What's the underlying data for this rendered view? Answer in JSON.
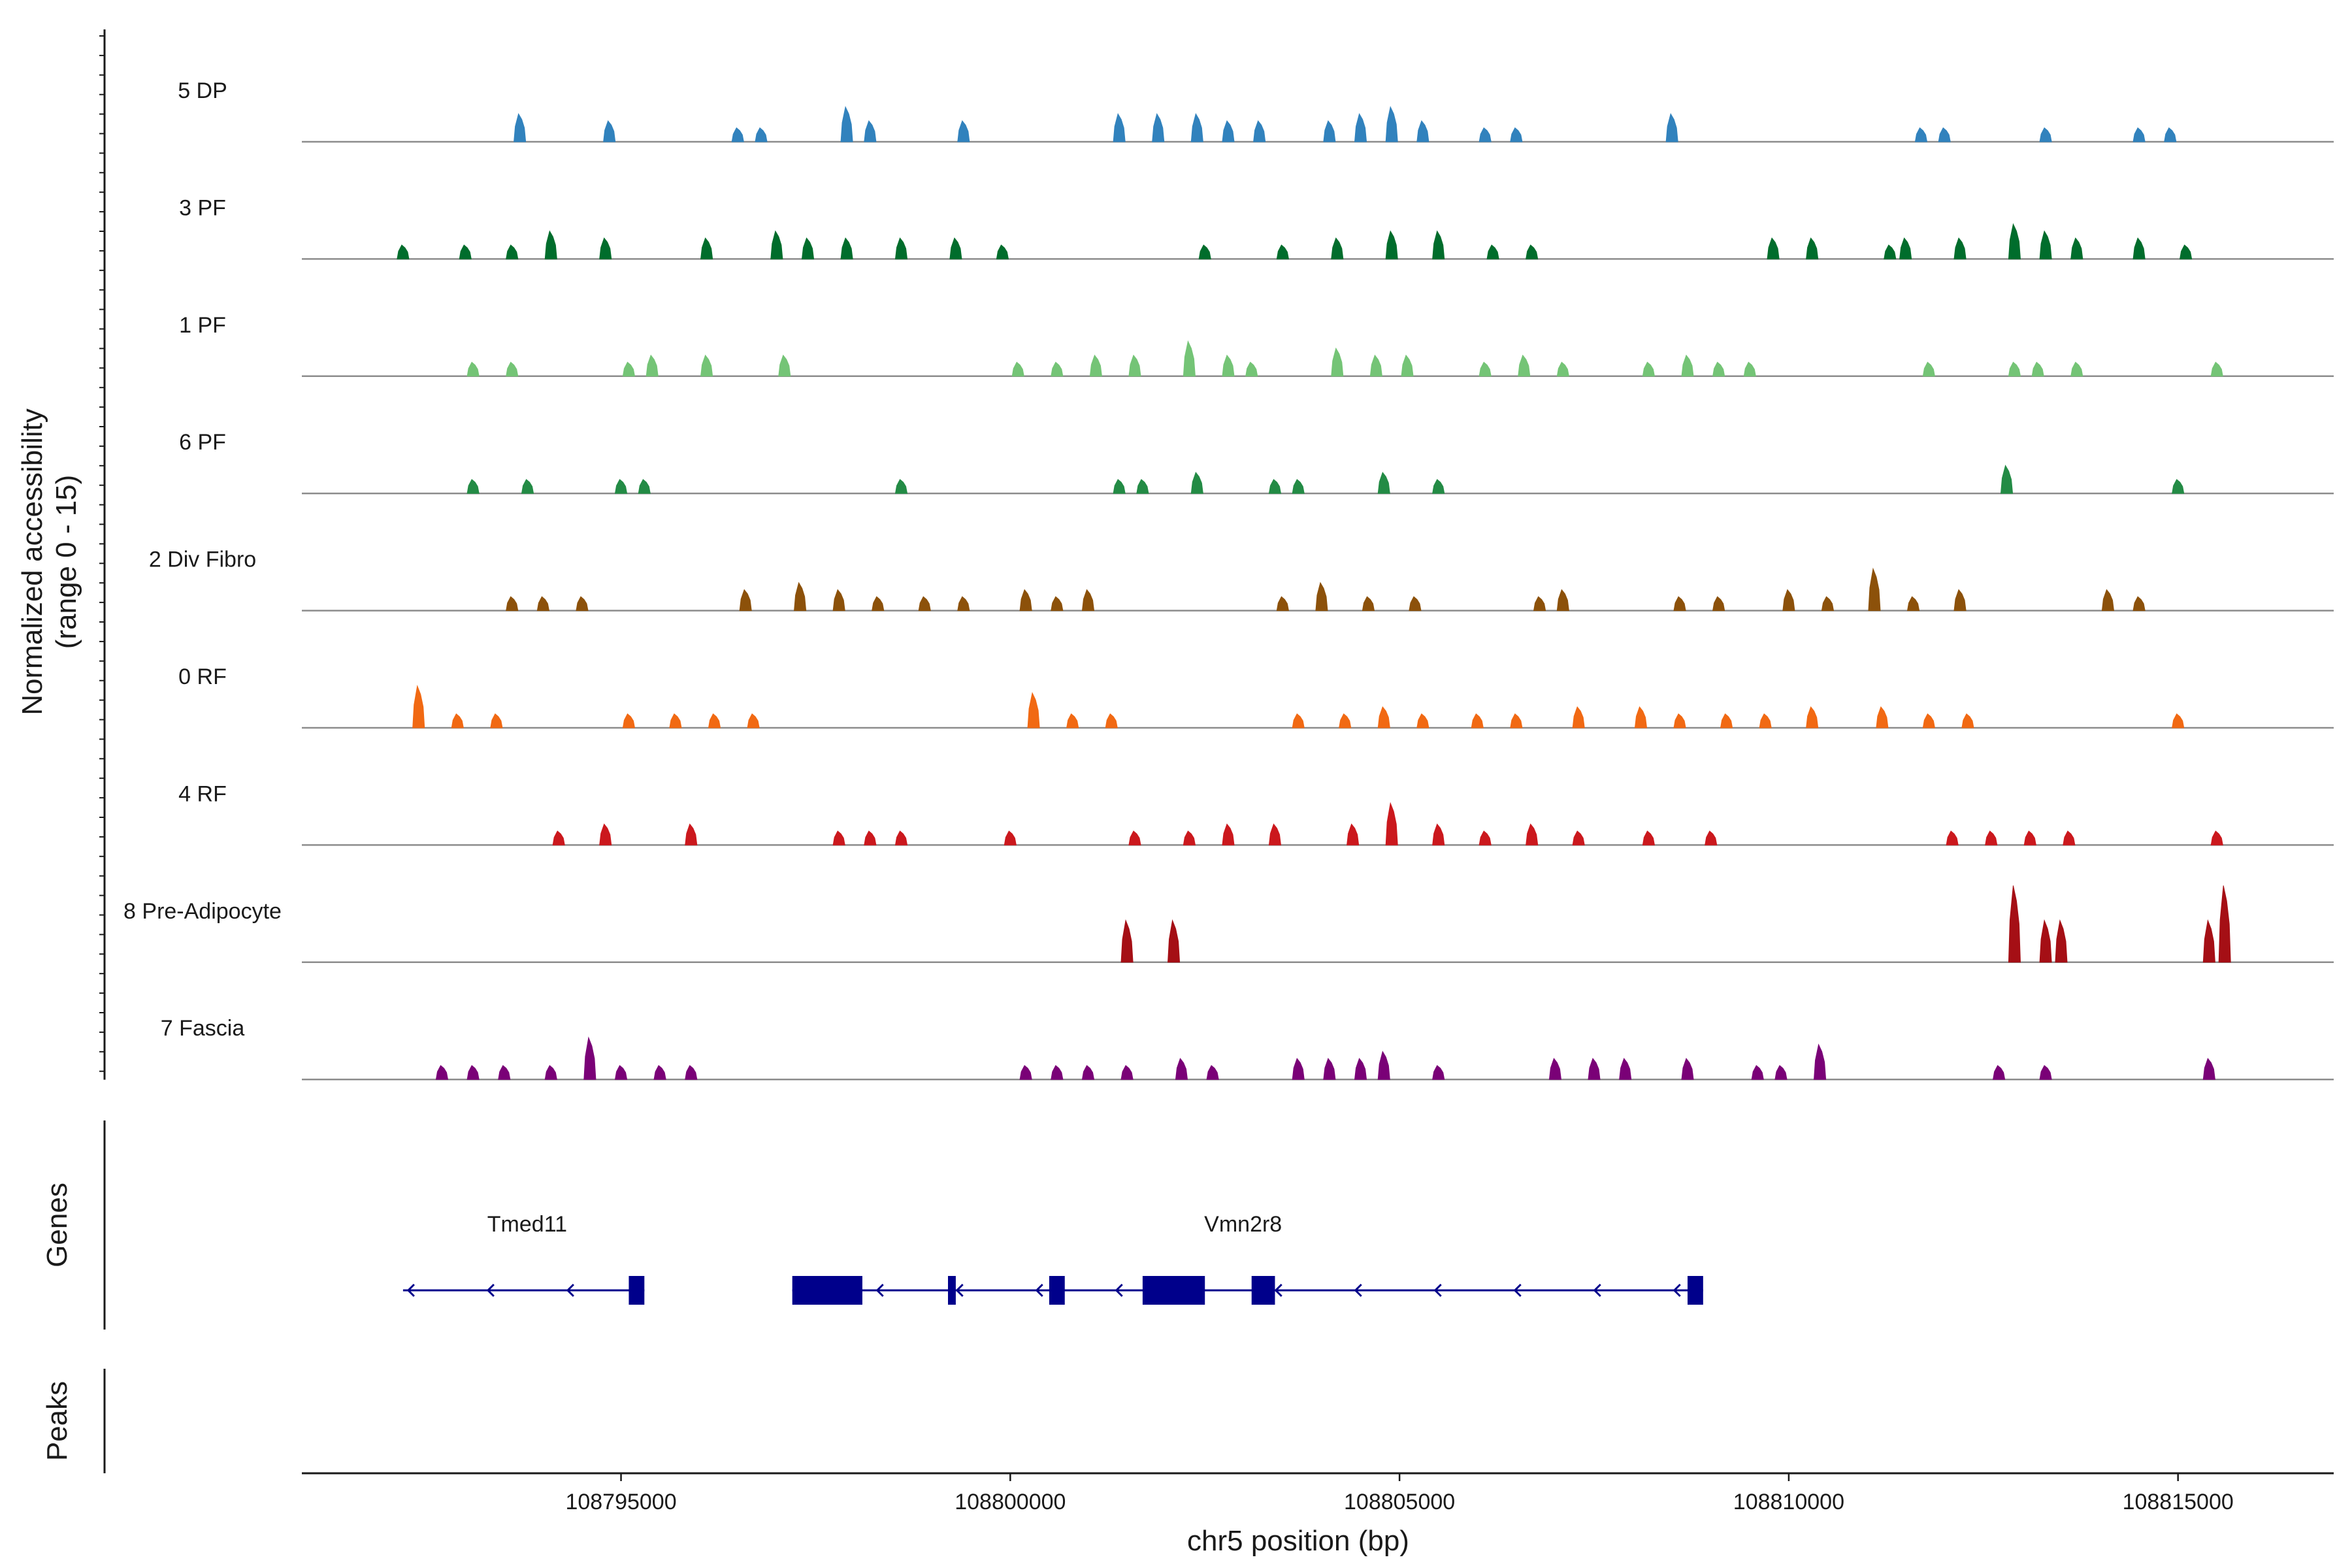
{
  "chart_data": {
    "type": "coverage-track",
    "ylabel_line1": "Normalized accessibility",
    "ylabel_line2": "(range 0 - 15)",
    "ylim": [
      0,
      15
    ],
    "xlabel": "chr5 position (bp)",
    "xlim": [
      108790900,
      108817000
    ],
    "xticks": [
      108795000,
      108800000,
      108805000,
      108810000,
      108815000
    ],
    "xtick_labels": [
      "108795000",
      "108800000",
      "108805000",
      "108810000",
      "108815000"
    ],
    "tracks": [
      {
        "name": "5 DP",
        "color": "#3182BD",
        "peaks": [
          [
            108793700,
            4
          ],
          [
            108794850,
            3
          ],
          [
            108796500,
            2
          ],
          [
            108796800,
            2
          ],
          [
            108797900,
            5
          ],
          [
            108798200,
            3
          ],
          [
            108799400,
            3
          ],
          [
            108801400,
            4
          ],
          [
            108801900,
            4
          ],
          [
            108802400,
            4
          ],
          [
            108802800,
            3
          ],
          [
            108803200,
            3
          ],
          [
            108804100,
            3
          ],
          [
            108804500,
            4
          ],
          [
            108804900,
            5
          ],
          [
            108805300,
            3
          ],
          [
            108806100,
            2
          ],
          [
            108806500,
            2
          ],
          [
            108808500,
            4
          ],
          [
            108811700,
            2
          ],
          [
            108812000,
            2
          ],
          [
            108813300,
            2
          ],
          [
            108814500,
            2
          ],
          [
            108814900,
            2
          ]
        ]
      },
      {
        "name": "3 PF",
        "color": "#006D2C",
        "peaks": [
          [
            108792200,
            2
          ],
          [
            108793000,
            2
          ],
          [
            108793600,
            2
          ],
          [
            108794100,
            4
          ],
          [
            108794800,
            3
          ],
          [
            108796100,
            3
          ],
          [
            108797000,
            4
          ],
          [
            108797400,
            3
          ],
          [
            108797900,
            3
          ],
          [
            108798600,
            3
          ],
          [
            108799300,
            3
          ],
          [
            108799900,
            2
          ],
          [
            108802500,
            2
          ],
          [
            108803500,
            2
          ],
          [
            108804200,
            3
          ],
          [
            108804900,
            4
          ],
          [
            108805500,
            4
          ],
          [
            108806200,
            2
          ],
          [
            108806700,
            2
          ],
          [
            108809800,
            3
          ],
          [
            108810300,
            3
          ],
          [
            108811300,
            2
          ],
          [
            108811500,
            3
          ],
          [
            108812200,
            3
          ],
          [
            108812900,
            5
          ],
          [
            108813300,
            4
          ],
          [
            108813700,
            3
          ],
          [
            108814500,
            3
          ],
          [
            108815100,
            2
          ]
        ]
      },
      {
        "name": "1 PF",
        "color": "#74C476",
        "peaks": [
          [
            108793100,
            2
          ],
          [
            108793600,
            2
          ],
          [
            108795100,
            2
          ],
          [
            108795400,
            3
          ],
          [
            108796100,
            3
          ],
          [
            108797100,
            3
          ],
          [
            108800100,
            2
          ],
          [
            108800600,
            2
          ],
          [
            108801100,
            3
          ],
          [
            108801600,
            3
          ],
          [
            108802300,
            5
          ],
          [
            108802800,
            3
          ],
          [
            108803100,
            2
          ],
          [
            108804200,
            4
          ],
          [
            108804700,
            3
          ],
          [
            108805100,
            3
          ],
          [
            108806100,
            2
          ],
          [
            108806600,
            3
          ],
          [
            108807100,
            2
          ],
          [
            108808200,
            2
          ],
          [
            108808700,
            3
          ],
          [
            108809100,
            2
          ],
          [
            108809500,
            2
          ],
          [
            108811800,
            2
          ],
          [
            108812900,
            2
          ],
          [
            108813200,
            2
          ],
          [
            108813700,
            2
          ],
          [
            108815500,
            2
          ]
        ]
      },
      {
        "name": "6 PF",
        "color": "#238B45",
        "peaks": [
          [
            108793100,
            2
          ],
          [
            108793800,
            2
          ],
          [
            108795000,
            2
          ],
          [
            108795300,
            2
          ],
          [
            108798600,
            2
          ],
          [
            108801400,
            2
          ],
          [
            108801700,
            2
          ],
          [
            108802400,
            3
          ],
          [
            108803400,
            2
          ],
          [
            108803700,
            2
          ],
          [
            108804800,
            3
          ],
          [
            108805500,
            2
          ],
          [
            108812800,
            4
          ],
          [
            108815000,
            2
          ]
        ]
      },
      {
        "name": "2 Div Fibro",
        "color": "#8C510A",
        "peaks": [
          [
            108793600,
            2
          ],
          [
            108794000,
            2
          ],
          [
            108794500,
            2
          ],
          [
            108796600,
            3
          ],
          [
            108797300,
            4
          ],
          [
            108797800,
            3
          ],
          [
            108798300,
            2
          ],
          [
            108798900,
            2
          ],
          [
            108799400,
            2
          ],
          [
            108800200,
            3
          ],
          [
            108800600,
            2
          ],
          [
            108801000,
            3
          ],
          [
            108803500,
            2
          ],
          [
            108804000,
            4
          ],
          [
            108804600,
            2
          ],
          [
            108805200,
            2
          ],
          [
            108806800,
            2
          ],
          [
            108807100,
            3
          ],
          [
            108808600,
            2
          ],
          [
            108809100,
            2
          ],
          [
            108810000,
            3
          ],
          [
            108810500,
            2
          ],
          [
            108811100,
            6
          ],
          [
            108811600,
            2
          ],
          [
            108812200,
            3
          ],
          [
            108814100,
            3
          ],
          [
            108814500,
            2
          ]
        ]
      },
      {
        "name": "0 RF",
        "color": "#F16913",
        "peaks": [
          [
            108792400,
            6
          ],
          [
            108792900,
            2
          ],
          [
            108793400,
            2
          ],
          [
            108795100,
            2
          ],
          [
            108795700,
            2
          ],
          [
            108796200,
            2
          ],
          [
            108796700,
            2
          ],
          [
            108800300,
            5
          ],
          [
            108800800,
            2
          ],
          [
            108801300,
            2
          ],
          [
            108803700,
            2
          ],
          [
            108804300,
            2
          ],
          [
            108804800,
            3
          ],
          [
            108805300,
            2
          ],
          [
            108806000,
            2
          ],
          [
            108806500,
            2
          ],
          [
            108807300,
            3
          ],
          [
            108808100,
            3
          ],
          [
            108808600,
            2
          ],
          [
            108809200,
            2
          ],
          [
            108809700,
            2
          ],
          [
            108810300,
            3
          ],
          [
            108811200,
            3
          ],
          [
            108811800,
            2
          ],
          [
            108812300,
            2
          ],
          [
            108815000,
            2
          ]
        ]
      },
      {
        "name": "4 RF",
        "color": "#CB181D",
        "peaks": [
          [
            108794200,
            2
          ],
          [
            108794800,
            3
          ],
          [
            108795900,
            3
          ],
          [
            108797800,
            2
          ],
          [
            108798200,
            2
          ],
          [
            108798600,
            2
          ],
          [
            108800000,
            2
          ],
          [
            108801600,
            2
          ],
          [
            108802300,
            2
          ],
          [
            108802800,
            3
          ],
          [
            108803400,
            3
          ],
          [
            108804400,
            3
          ],
          [
            108804900,
            6
          ],
          [
            108805500,
            3
          ],
          [
            108806100,
            2
          ],
          [
            108806700,
            3
          ],
          [
            108807300,
            2
          ],
          [
            108808200,
            2
          ],
          [
            108809000,
            2
          ],
          [
            108812100,
            2
          ],
          [
            108812600,
            2
          ],
          [
            108813100,
            2
          ],
          [
            108813600,
            2
          ],
          [
            108815500,
            2
          ]
        ]
      },
      {
        "name": "8 Pre-Adipocyte",
        "color": "#A50F15",
        "peaks": [
          [
            108801500,
            6
          ],
          [
            108802100,
            6
          ],
          [
            108812900,
            11
          ],
          [
            108813300,
            6
          ],
          [
            108813500,
            6
          ],
          [
            108815400,
            6
          ],
          [
            108815600,
            11
          ]
        ]
      },
      {
        "name": "7 Fascia",
        "color": "#7A0177",
        "peaks": [
          [
            108792700,
            2
          ],
          [
            108793100,
            2
          ],
          [
            108793500,
            2
          ],
          [
            108794100,
            2
          ],
          [
            108794600,
            6
          ],
          [
            108795000,
            2
          ],
          [
            108795500,
            2
          ],
          [
            108795900,
            2
          ],
          [
            108800200,
            2
          ],
          [
            108800600,
            2
          ],
          [
            108801000,
            2
          ],
          [
            108801500,
            2
          ],
          [
            108802200,
            3
          ],
          [
            108802600,
            2
          ],
          [
            108803700,
            3
          ],
          [
            108804100,
            3
          ],
          [
            108804500,
            3
          ],
          [
            108804800,
            4
          ],
          [
            108805500,
            2
          ],
          [
            108807000,
            3
          ],
          [
            108807500,
            3
          ],
          [
            108807900,
            3
          ],
          [
            108808700,
            3
          ],
          [
            108809600,
            2
          ],
          [
            108809900,
            2
          ],
          [
            108810400,
            5
          ],
          [
            108812700,
            2
          ],
          [
            108813300,
            2
          ],
          [
            108815400,
            3
          ]
        ]
      }
    ],
    "genes": [
      {
        "name": "Tmed11",
        "strand": "-",
        "start": 108792200,
        "end": 108795300,
        "exons": [
          [
            108795100,
            108795300
          ]
        ]
      },
      {
        "name": "Vmn2r8",
        "strand": "-",
        "start": 108797200,
        "end": 108808900,
        "exons": [
          [
            108797200,
            108798100
          ],
          [
            108799200,
            108799300
          ],
          [
            108800500,
            108800700
          ],
          [
            108801700,
            108802500
          ],
          [
            108803100,
            108803400
          ],
          [
            108808700,
            108808900
          ]
        ]
      }
    ],
    "panel_labels": {
      "genes": "Genes",
      "peaks": "Peaks"
    }
  }
}
